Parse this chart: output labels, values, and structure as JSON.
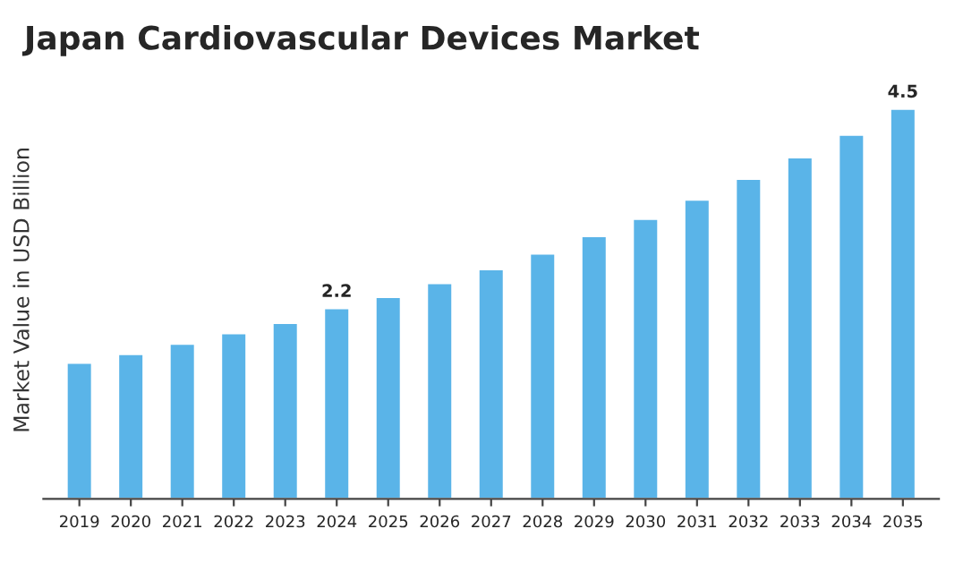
{
  "chart_data": {
    "type": "bar",
    "title": "Japan Cardiovascular Devices Market",
    "ylabel": "Market Value in USD Billion",
    "categories": [
      "2019",
      "2020",
      "2021",
      "2022",
      "2023",
      "2024",
      "2025",
      "2026",
      "2027",
      "2028",
      "2029",
      "2030",
      "2031",
      "2032",
      "2033",
      "2034",
      "2035"
    ],
    "values": [
      1.57,
      1.67,
      1.79,
      1.91,
      2.03,
      2.2,
      2.33,
      2.49,
      2.65,
      2.83,
      3.03,
      3.23,
      3.45,
      3.69,
      3.94,
      4.2,
      4.5
    ],
    "value_labels": [
      null,
      null,
      null,
      null,
      null,
      "2.2",
      null,
      null,
      null,
      null,
      null,
      null,
      null,
      null,
      null,
      null,
      "4.5"
    ],
    "color": "#5ab4e8",
    "grid": false,
    "legend": false
  }
}
